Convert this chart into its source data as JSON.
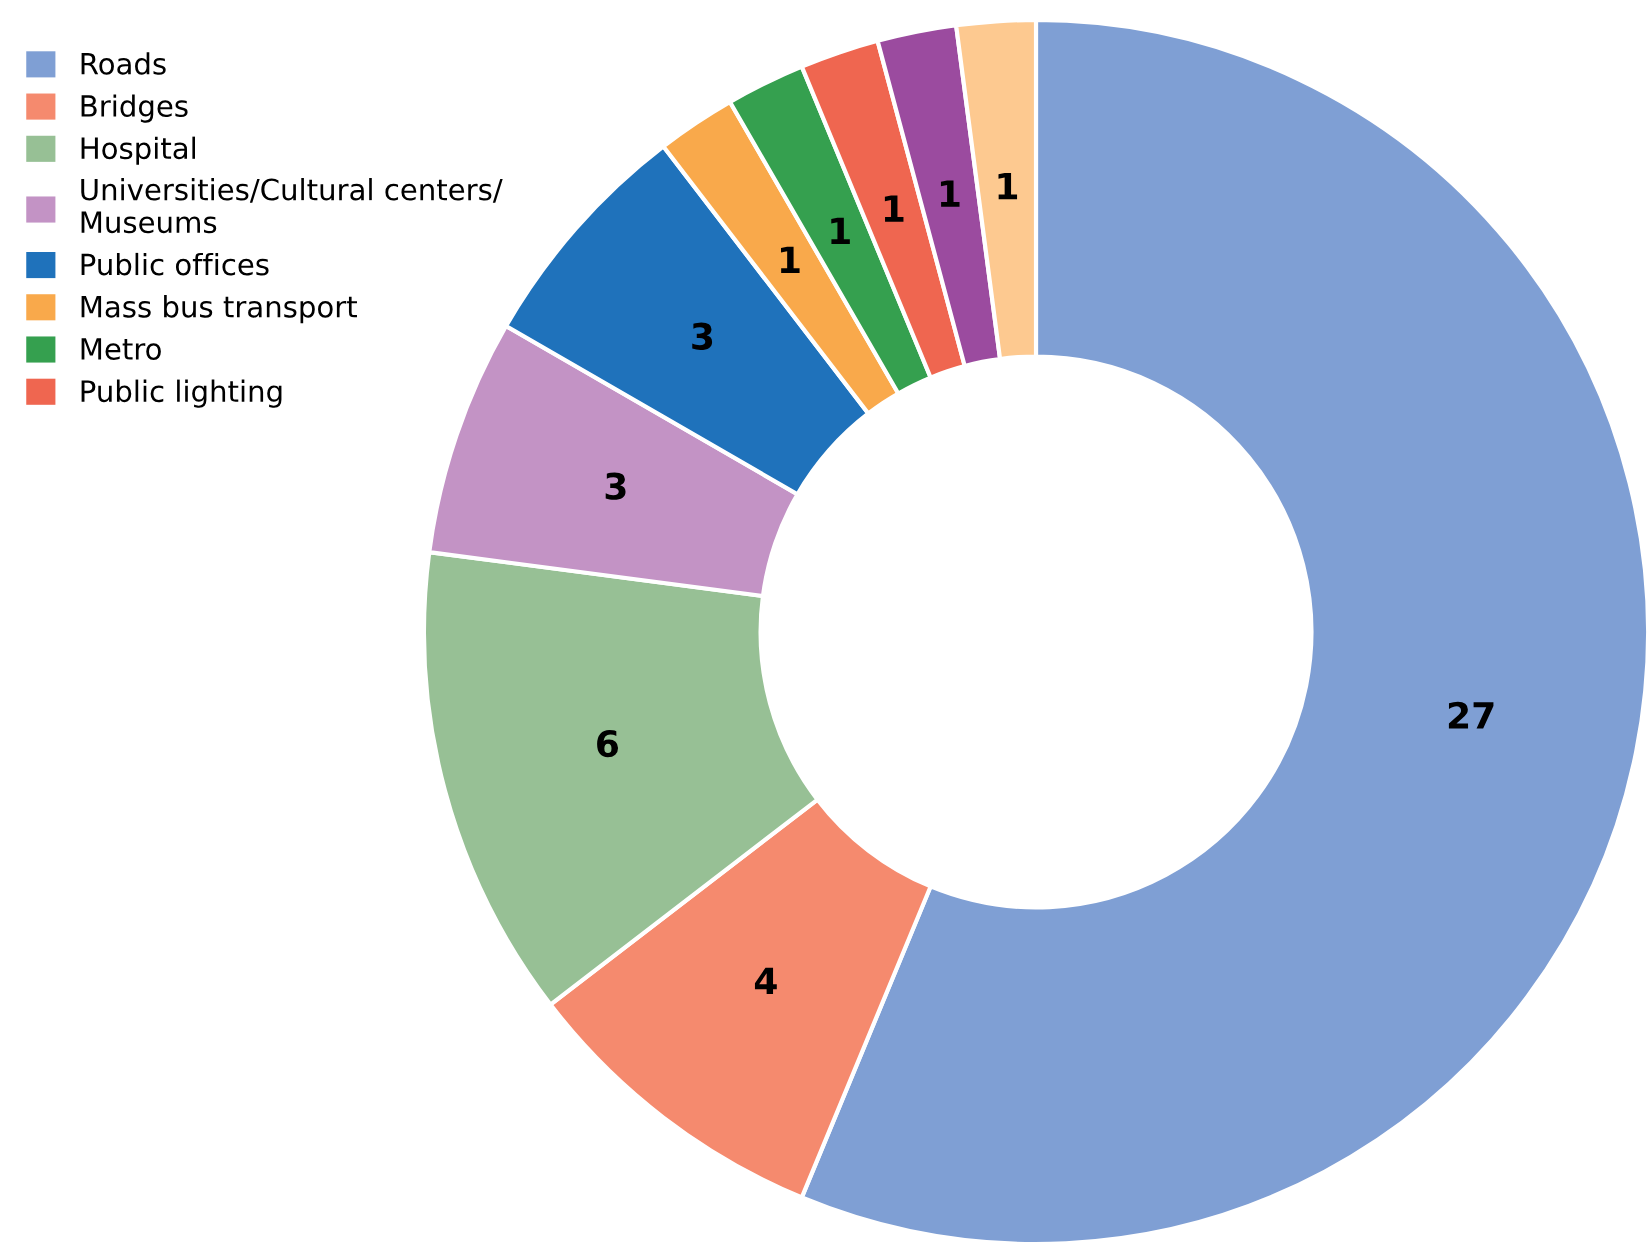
{
  "chart_data": {
    "type": "donut",
    "categories": [
      "Roads",
      "Bridges",
      "Hospital",
      "Universities/Cultural centers/\nMuseums",
      "Public offices",
      "Mass bus transport",
      "Metro",
      "Public lighting",
      null,
      null
    ],
    "values": [
      27,
      4,
      6,
      3,
      3,
      1,
      1,
      1,
      1,
      1
    ],
    "colors": [
      "#7f9fd4",
      "#f58a6e",
      "#97c095",
      "#c393c5",
      "#1f72bb",
      "#f9a94b",
      "#35a04f",
      "#ef6650",
      "#9b4b9f",
      "#fdc990"
    ],
    "data_labels": true,
    "legend": "top left"
  }
}
